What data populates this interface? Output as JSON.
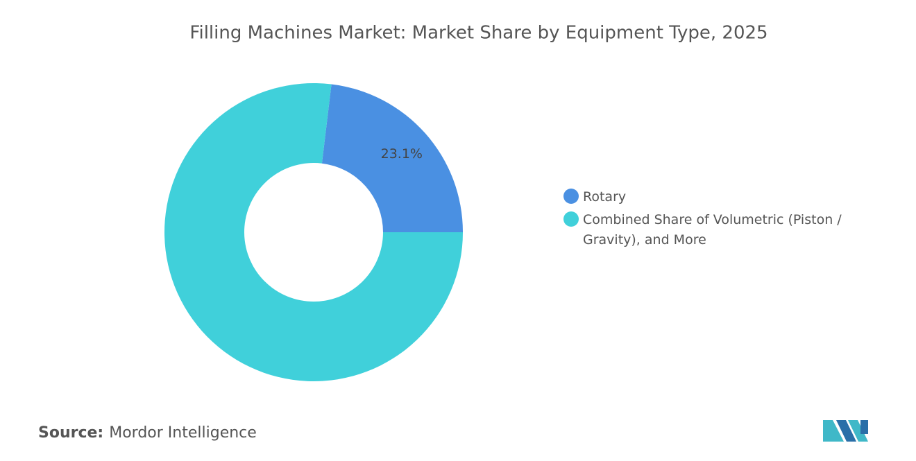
{
  "chart_data": {
    "type": "donut",
    "title": "Filling Machines Market: Market Share by Equipment Type, 2025",
    "categories": [
      "Rotary",
      "Combined Share of Volumetric (Piston / Gravity), and More"
    ],
    "values": [
      23.1,
      76.9
    ],
    "value_labels": [
      "23.1%",
      null
    ],
    "colors": [
      "#4a90e2",
      "#40d0da"
    ],
    "legend": "right"
  },
  "source": {
    "label": "Source:",
    "text": "Mordor Intelligence"
  }
}
